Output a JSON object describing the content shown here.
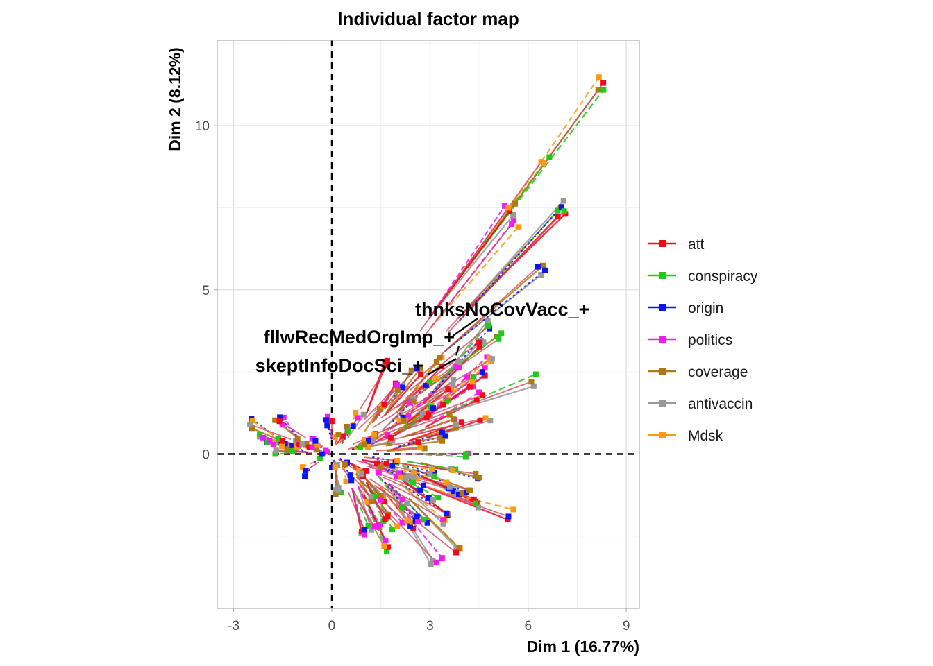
{
  "chart_data": {
    "type": "scatter",
    "title": "Individual factor map",
    "xlabel": "Dim 1 (16.77%)",
    "ylabel": "Dim 2 (8.12%)",
    "xlim": [
      -3.5,
      9.4
    ],
    "ylim": [
      -4.7,
      12.6
    ],
    "xticks": [
      -3,
      0,
      3,
      6,
      9
    ],
    "yticks": [
      0,
      5,
      10
    ],
    "xtick_labels": [
      "-3",
      "0",
      "3",
      "6",
      "9"
    ],
    "ytick_labels": [
      "0",
      "5",
      "10"
    ],
    "grid": true,
    "reference_lines": [
      {
        "axis": "x",
        "value": 0,
        "style": "dashed"
      },
      {
        "axis": "y",
        "value": 0,
        "style": "dashed"
      }
    ],
    "legend_position": "right",
    "series": [
      {
        "name": "att",
        "color": "#F8071A"
      },
      {
        "name": "conspiracy",
        "color": "#22C81A"
      },
      {
        "name": "origin",
        "color": "#0A14F5"
      },
      {
        "name": "politics",
        "color": "#F31BF0"
      },
      {
        "name": "coverage",
        "color": "#B07810"
      },
      {
        "name": "antivaccin",
        "color": "#999999"
      },
      {
        "name": "Mdsk",
        "color": "#FF9A10"
      }
    ],
    "annotations": [
      {
        "text": "thnksNoCovVacc_+",
        "point": [
          3.7,
          3.6
        ]
      },
      {
        "text": "fllwRecMedOrgImp_+",
        "point": [
          3.8,
          3.0
        ]
      },
      {
        "text": "skeptInfoDocSci_+",
        "point": [
          3.8,
          2.9
        ]
      }
    ],
    "centroids": [
      [
        -2.5,
        0.9
      ],
      [
        -2.1,
        0.5
      ],
      [
        -1.9,
        0.4
      ],
      [
        -1.6,
        1.0
      ],
      [
        -1.5,
        0.4
      ],
      [
        -1.7,
        0.1
      ],
      [
        -1.2,
        0.1
      ],
      [
        -1.1,
        0.4
      ],
      [
        -0.9,
        0.3
      ],
      [
        -0.8,
        -0.5
      ],
      [
        -0.6,
        0.2
      ],
      [
        -0.5,
        0.4
      ],
      [
        -0.3,
        0.0
      ],
      [
        0.0,
        1.0
      ],
      [
        0.1,
        -0.4
      ],
      [
        0.2,
        0.6
      ],
      [
        0.2,
        -1.1
      ],
      [
        0.4,
        -0.3
      ],
      [
        0.5,
        0.7
      ],
      [
        0.6,
        -0.8
      ],
      [
        0.8,
        1.1
      ],
      [
        0.9,
        -0.6
      ],
      [
        1.0,
        0.3
      ],
      [
        1.0,
        -2.3
      ],
      [
        1.2,
        -1.3
      ],
      [
        1.3,
        0.6
      ],
      [
        1.3,
        -2.2
      ],
      [
        1.5,
        -0.4
      ],
      [
        1.5,
        -1.4
      ],
      [
        1.6,
        1.5
      ],
      [
        1.6,
        -2.8
      ],
      [
        1.7,
        -1.9
      ],
      [
        1.7,
        2.7
      ],
      [
        1.8,
        0.5
      ],
      [
        2.0,
        -0.2
      ],
      [
        2.0,
        -2.2
      ],
      [
        2.0,
        2.1
      ],
      [
        2.1,
        -0.7
      ],
      [
        2.2,
        1.0
      ],
      [
        2.3,
        -1.5
      ],
      [
        2.4,
        -2.2
      ],
      [
        2.5,
        1.6
      ],
      [
        2.5,
        -0.7
      ],
      [
        2.6,
        -1.9
      ],
      [
        2.6,
        2.6
      ],
      [
        2.7,
        0.2
      ],
      [
        2.7,
        -1.1
      ],
      [
        2.8,
        -2.0
      ],
      [
        2.9,
        1.1
      ],
      [
        3.0,
        -0.6
      ],
      [
        3.0,
        2.2
      ],
      [
        3.1,
        1.4
      ],
      [
        3.1,
        -1.4
      ],
      [
        3.2,
        -3.3
      ],
      [
        3.2,
        2.8
      ],
      [
        3.3,
        0.5
      ],
      [
        3.4,
        -2.0
      ],
      [
        3.4,
        1.5
      ],
      [
        3.5,
        -1.8
      ],
      [
        3.6,
        1.2
      ],
      [
        3.6,
        -1.0
      ],
      [
        3.7,
        2.1
      ],
      [
        3.7,
        -0.5
      ],
      [
        3.8,
        0.9
      ],
      [
        3.8,
        -3.0
      ],
      [
        3.9,
        2.8
      ],
      [
        4.0,
        -1.2
      ],
      [
        4.1,
        0.0
      ],
      [
        4.2,
        -1.1
      ],
      [
        4.3,
        2.2
      ],
      [
        4.4,
        -0.6
      ],
      [
        4.4,
        -1.5
      ],
      [
        4.5,
        3.4
      ],
      [
        4.6,
        1.8
      ],
      [
        4.6,
        2.5
      ],
      [
        4.7,
        1.1
      ],
      [
        4.8,
        3.9
      ],
      [
        4.9,
        2.9
      ],
      [
        5.1,
        3.5
      ],
      [
        5.4,
        -1.9
      ],
      [
        6.1,
        2.2
      ],
      [
        6.3,
        5.7
      ],
      [
        7.0,
        7.5
      ],
      [
        7.1,
        7.4
      ],
      [
        8.3,
        11.3
      ],
      [
        6.4,
        8.9
      ],
      [
        5.4,
        7.5
      ],
      [
        5.5,
        7.0
      ]
    ]
  }
}
